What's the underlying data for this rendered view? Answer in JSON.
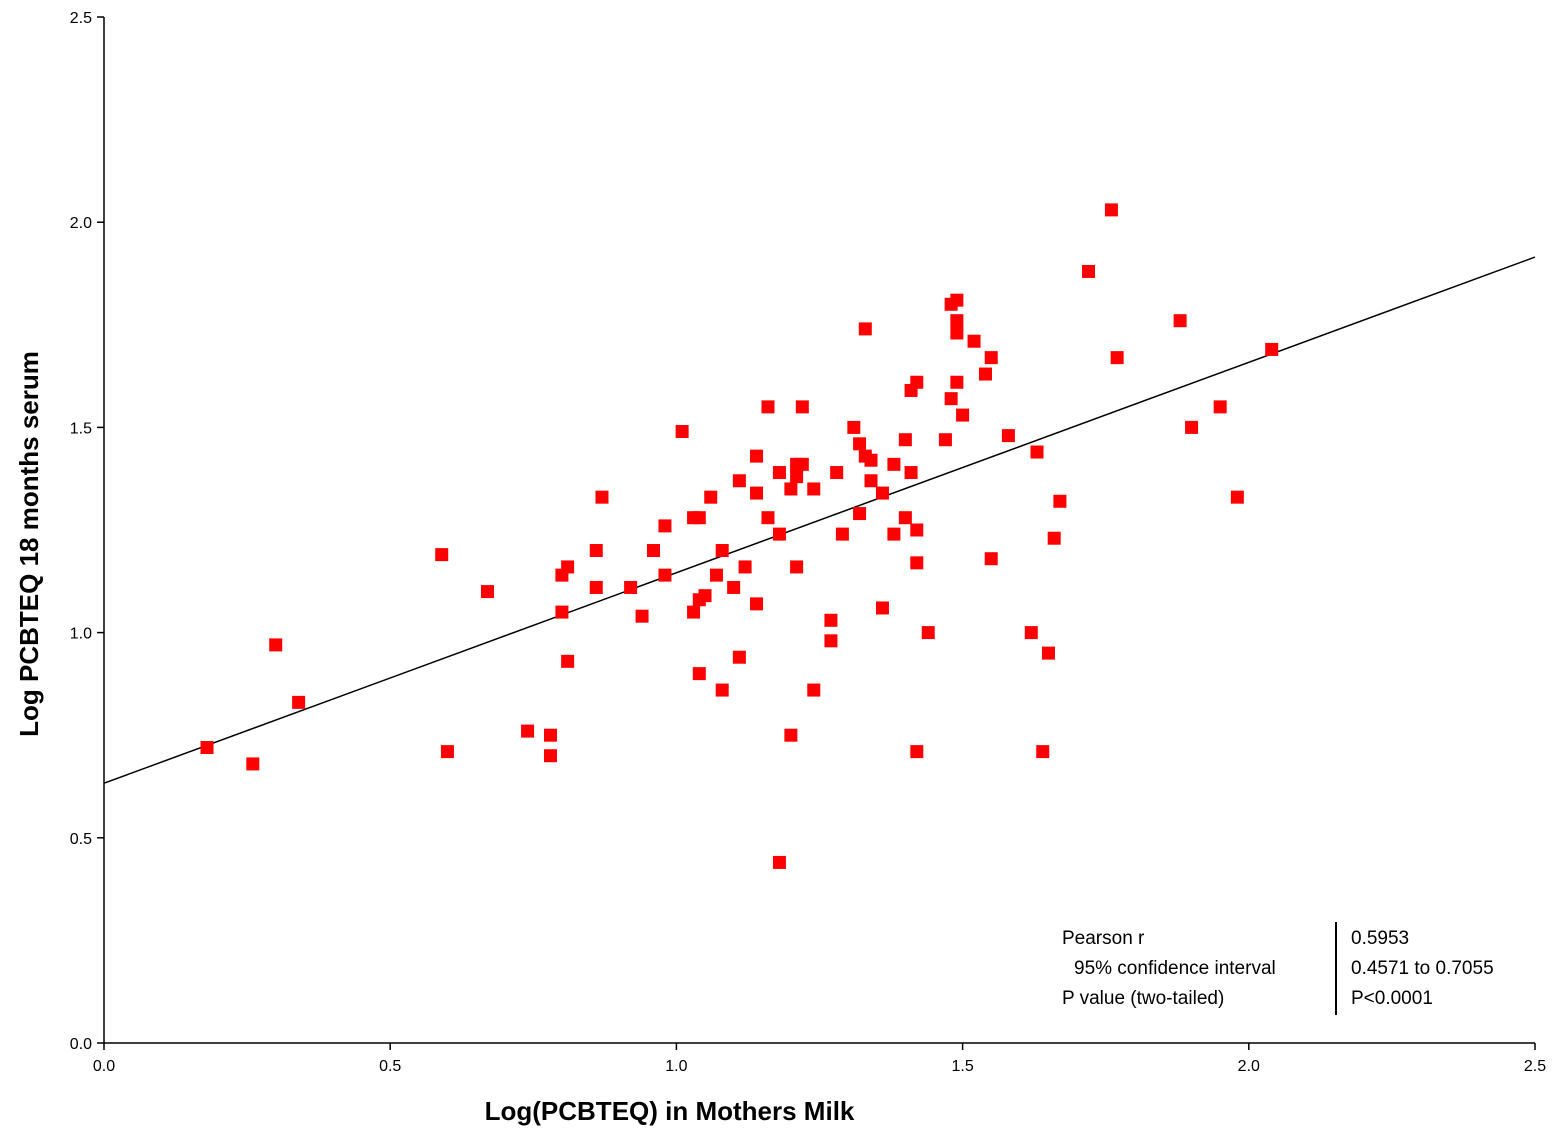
{
  "chart_data": {
    "type": "scatter",
    "title": "",
    "xlabel": "Log(PCBTEQ) in Mothers Milk",
    "ylabel": "Log PCBTEQ 18 months serum",
    "xlim": [
      0.0,
      2.5
    ],
    "ylim": [
      0.0,
      2.5
    ],
    "x_ticks": [
      "0.0",
      "0.5",
      "1.0",
      "1.5",
      "2.0",
      "2.5"
    ],
    "y_ticks": [
      "0.0",
      "0.5",
      "1.0",
      "1.5",
      "2.0",
      "2.5"
    ],
    "grid": false,
    "marker_color": "#ff0000",
    "line_color": "#000000",
    "regression_line": {
      "x": [
        0.0,
        2.5
      ],
      "y": [
        0.633,
        1.915
      ]
    },
    "series": [
      {
        "points": [
          [
            0.18,
            0.72
          ],
          [
            0.26,
            0.68
          ],
          [
            0.3,
            0.97
          ],
          [
            0.34,
            0.83
          ],
          [
            0.59,
            1.19
          ],
          [
            0.6,
            0.71
          ],
          [
            0.67,
            1.1
          ],
          [
            0.74,
            0.76
          ],
          [
            0.78,
            0.75
          ],
          [
            0.78,
            0.7
          ],
          [
            0.8,
            1.14
          ],
          [
            0.8,
            1.05
          ],
          [
            0.81,
            1.16
          ],
          [
            0.81,
            0.93
          ],
          [
            0.86,
            1.2
          ],
          [
            0.86,
            1.11
          ],
          [
            0.87,
            1.33
          ],
          [
            0.92,
            1.11
          ],
          [
            0.94,
            1.04
          ],
          [
            0.96,
            1.2
          ],
          [
            0.98,
            1.26
          ],
          [
            0.98,
            1.14
          ],
          [
            1.01,
            1.49
          ],
          [
            1.03,
            1.28
          ],
          [
            1.03,
            1.05
          ],
          [
            1.04,
            1.28
          ],
          [
            1.04,
            1.08
          ],
          [
            1.04,
            0.9
          ],
          [
            1.05,
            1.09
          ],
          [
            1.06,
            1.33
          ],
          [
            1.07,
            1.14
          ],
          [
            1.08,
            1.2
          ],
          [
            1.08,
            0.86
          ],
          [
            1.1,
            1.11
          ],
          [
            1.11,
            1.37
          ],
          [
            1.11,
            0.94
          ],
          [
            1.12,
            1.16
          ],
          [
            1.14,
            1.43
          ],
          [
            1.14,
            1.34
          ],
          [
            1.14,
            1.07
          ],
          [
            1.16,
            1.55
          ],
          [
            1.16,
            1.28
          ],
          [
            1.18,
            1.39
          ],
          [
            1.18,
            1.24
          ],
          [
            1.18,
            0.44
          ],
          [
            1.2,
            1.35
          ],
          [
            1.2,
            0.75
          ],
          [
            1.21,
            1.41
          ],
          [
            1.21,
            1.38
          ],
          [
            1.21,
            1.16
          ],
          [
            1.22,
            1.41
          ],
          [
            1.22,
            1.55
          ],
          [
            1.24,
            1.35
          ],
          [
            1.24,
            0.86
          ],
          [
            1.27,
            0.98
          ],
          [
            1.27,
            1.03
          ],
          [
            1.28,
            1.39
          ],
          [
            1.29,
            1.24
          ],
          [
            1.31,
            1.5
          ],
          [
            1.32,
            1.46
          ],
          [
            1.32,
            1.29
          ],
          [
            1.33,
            1.74
          ],
          [
            1.33,
            1.43
          ],
          [
            1.34,
            1.42
          ],
          [
            1.34,
            1.37
          ],
          [
            1.36,
            1.34
          ],
          [
            1.36,
            1.06
          ],
          [
            1.38,
            1.41
          ],
          [
            1.38,
            1.24
          ],
          [
            1.4,
            1.47
          ],
          [
            1.4,
            1.28
          ],
          [
            1.41,
            1.59
          ],
          [
            1.41,
            1.39
          ],
          [
            1.42,
            1.61
          ],
          [
            1.42,
            0.71
          ],
          [
            1.42,
            1.25
          ],
          [
            1.42,
            1.17
          ],
          [
            1.44,
            1.0
          ],
          [
            1.47,
            1.47
          ],
          [
            1.48,
            1.8
          ],
          [
            1.48,
            1.57
          ],
          [
            1.49,
            1.61
          ],
          [
            1.49,
            1.81
          ],
          [
            1.49,
            1.76
          ],
          [
            1.49,
            1.73
          ],
          [
            1.5,
            1.53
          ],
          [
            1.52,
            1.71
          ],
          [
            1.54,
            1.63
          ],
          [
            1.55,
            1.67
          ],
          [
            1.55,
            1.18
          ],
          [
            1.58,
            1.48
          ],
          [
            1.62,
            1.0
          ],
          [
            1.63,
            1.44
          ],
          [
            1.64,
            0.71
          ],
          [
            1.65,
            0.95
          ],
          [
            1.66,
            1.23
          ],
          [
            1.67,
            1.32
          ],
          [
            1.72,
            1.88
          ],
          [
            1.76,
            2.03
          ],
          [
            1.77,
            1.67
          ],
          [
            1.88,
            1.76
          ],
          [
            1.9,
            1.5
          ],
          [
            1.95,
            1.55
          ],
          [
            1.98,
            1.33
          ],
          [
            2.04,
            1.69
          ]
        ]
      }
    ],
    "stats": {
      "rows": [
        {
          "label": "Pearson r",
          "value": "0.5953"
        },
        {
          "label": "95% confidence interval",
          "value": "0.4571 to 0.7055"
        },
        {
          "label": "P value (two-tailed)",
          "value": "P<0.0001"
        }
      ]
    }
  }
}
